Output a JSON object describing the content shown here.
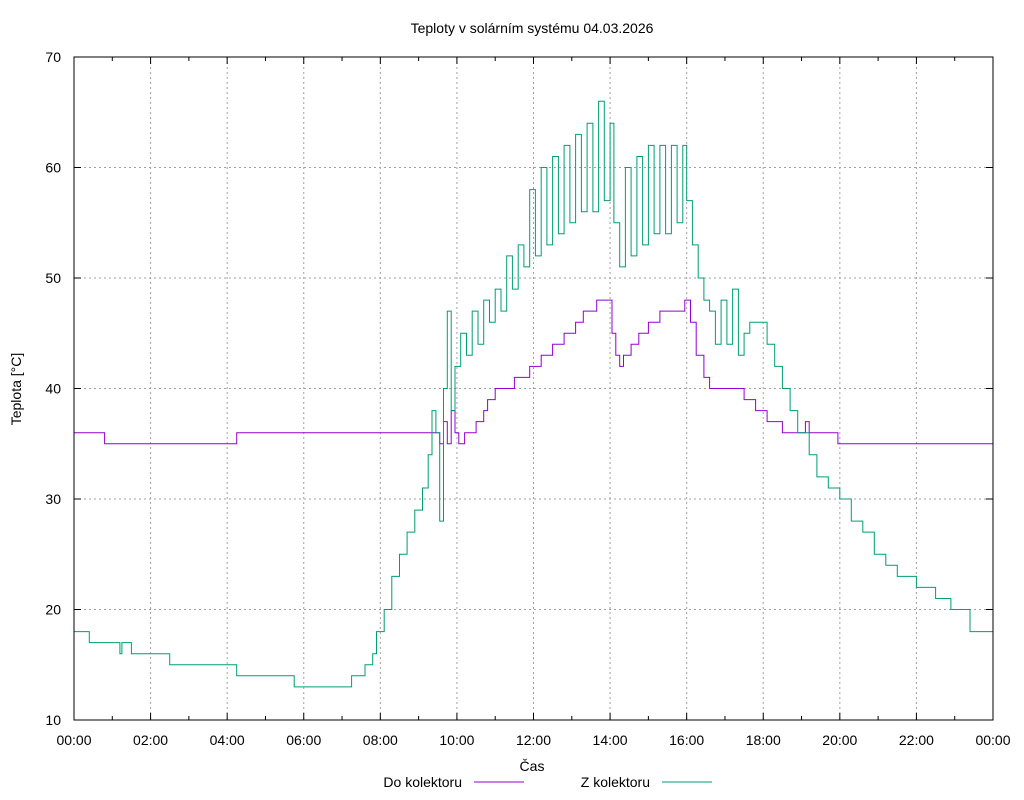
{
  "chart_data": {
    "type": "line",
    "title": "Teploty v solárním systému 04.03.2026",
    "xlabel": "Čas",
    "ylabel": "Teplota [°C]",
    "ylim": [
      10,
      70
    ],
    "xlim_hours": [
      0,
      24
    ],
    "grid": true,
    "legend_position": "bottom-center",
    "x_tick_labels": [
      "00:00",
      "02:00",
      "04:00",
      "06:00",
      "08:00",
      "10:00",
      "12:00",
      "14:00",
      "16:00",
      "18:00",
      "20:00",
      "22:00",
      "00:00"
    ],
    "y_tick_labels": [
      "10",
      "20",
      "30",
      "40",
      "50",
      "60",
      "70"
    ],
    "series": [
      {
        "name": "Do kolektoru",
        "color": "#9400d3",
        "points": [
          [
            0,
            36
          ],
          [
            0.8,
            36
          ],
          [
            0.8,
            35
          ],
          [
            4.25,
            35
          ],
          [
            4.25,
            36
          ],
          [
            9.5,
            36
          ],
          [
            9.55,
            35
          ],
          [
            9.65,
            37
          ],
          [
            9.75,
            35
          ],
          [
            9.85,
            38
          ],
          [
            9.95,
            36
          ],
          [
            10.05,
            35
          ],
          [
            10.2,
            36
          ],
          [
            10.5,
            37
          ],
          [
            10.7,
            38
          ],
          [
            10.8,
            39
          ],
          [
            11.0,
            40
          ],
          [
            11.5,
            40
          ],
          [
            11.5,
            41
          ],
          [
            11.9,
            42
          ],
          [
            12.2,
            43
          ],
          [
            12.5,
            44
          ],
          [
            12.8,
            45
          ],
          [
            13.1,
            46
          ],
          [
            13.3,
            47
          ],
          [
            13.6,
            47
          ],
          [
            13.65,
            48
          ],
          [
            13.9,
            48
          ],
          [
            14.05,
            45
          ],
          [
            14.15,
            43
          ],
          [
            14.25,
            42
          ],
          [
            14.35,
            43
          ],
          [
            14.55,
            44
          ],
          [
            14.75,
            45
          ],
          [
            15.0,
            46
          ],
          [
            15.3,
            47
          ],
          [
            15.9,
            47
          ],
          [
            15.95,
            48
          ],
          [
            16.05,
            48
          ],
          [
            16.1,
            46
          ],
          [
            16.25,
            43
          ],
          [
            16.45,
            41
          ],
          [
            16.6,
            40
          ],
          [
            17.3,
            40
          ],
          [
            17.5,
            39
          ],
          [
            17.8,
            38
          ],
          [
            18.1,
            37
          ],
          [
            18.5,
            36
          ],
          [
            19.0,
            36
          ],
          [
            19.1,
            37
          ],
          [
            19.2,
            36
          ],
          [
            19.95,
            36
          ],
          [
            19.95,
            35
          ],
          [
            24,
            35
          ]
        ]
      },
      {
        "name": "Z kolektoru",
        "color": "#009e73",
        "points": [
          [
            0,
            18
          ],
          [
            0.4,
            18
          ],
          [
            0.4,
            17
          ],
          [
            1.15,
            17
          ],
          [
            1.2,
            16
          ],
          [
            1.25,
            17
          ],
          [
            1.5,
            17
          ],
          [
            1.5,
            16
          ],
          [
            2.5,
            16
          ],
          [
            2.5,
            15
          ],
          [
            4.25,
            15
          ],
          [
            4.25,
            14
          ],
          [
            5.75,
            14
          ],
          [
            5.75,
            13
          ],
          [
            7.25,
            13
          ],
          [
            7.25,
            14
          ],
          [
            7.6,
            14
          ],
          [
            7.6,
            15
          ],
          [
            7.8,
            16
          ],
          [
            7.9,
            18
          ],
          [
            8.1,
            20
          ],
          [
            8.3,
            23
          ],
          [
            8.5,
            25
          ],
          [
            8.7,
            27
          ],
          [
            8.9,
            29
          ],
          [
            9.1,
            31
          ],
          [
            9.25,
            34
          ],
          [
            9.35,
            38
          ],
          [
            9.45,
            36
          ],
          [
            9.55,
            28
          ],
          [
            9.65,
            40
          ],
          [
            9.75,
            47
          ],
          [
            9.85,
            38
          ],
          [
            9.95,
            42
          ],
          [
            10.1,
            45
          ],
          [
            10.25,
            43
          ],
          [
            10.4,
            47
          ],
          [
            10.55,
            44
          ],
          [
            10.7,
            48
          ],
          [
            10.85,
            46
          ],
          [
            11.0,
            49
          ],
          [
            11.15,
            47
          ],
          [
            11.3,
            52
          ],
          [
            11.45,
            49
          ],
          [
            11.6,
            53
          ],
          [
            11.75,
            51
          ],
          [
            11.9,
            58
          ],
          [
            12.05,
            52
          ],
          [
            12.2,
            60
          ],
          [
            12.35,
            53
          ],
          [
            12.5,
            61
          ],
          [
            12.65,
            54
          ],
          [
            12.8,
            62
          ],
          [
            12.95,
            55
          ],
          [
            13.1,
            63
          ],
          [
            13.25,
            56
          ],
          [
            13.4,
            64
          ],
          [
            13.55,
            56
          ],
          [
            13.7,
            66
          ],
          [
            13.85,
            57
          ],
          [
            14.0,
            64
          ],
          [
            14.1,
            55
          ],
          [
            14.25,
            51
          ],
          [
            14.4,
            60
          ],
          [
            14.55,
            52
          ],
          [
            14.7,
            61
          ],
          [
            14.85,
            53
          ],
          [
            15.0,
            62
          ],
          [
            15.15,
            54
          ],
          [
            15.3,
            62
          ],
          [
            15.45,
            54
          ],
          [
            15.6,
            62
          ],
          [
            15.75,
            55
          ],
          [
            15.9,
            62
          ],
          [
            16.0,
            57
          ],
          [
            16.15,
            53
          ],
          [
            16.3,
            50
          ],
          [
            16.45,
            48
          ],
          [
            16.6,
            47
          ],
          [
            16.75,
            44
          ],
          [
            16.9,
            48
          ],
          [
            17.05,
            44
          ],
          [
            17.2,
            49
          ],
          [
            17.35,
            43
          ],
          [
            17.5,
            45
          ],
          [
            17.65,
            46
          ],
          [
            17.9,
            46
          ],
          [
            18.1,
            44
          ],
          [
            18.3,
            42
          ],
          [
            18.5,
            40
          ],
          [
            18.7,
            38
          ],
          [
            18.9,
            36
          ],
          [
            19.2,
            34
          ],
          [
            19.4,
            32
          ],
          [
            19.7,
            31
          ],
          [
            20.0,
            30
          ],
          [
            20.3,
            28
          ],
          [
            20.6,
            27
          ],
          [
            20.9,
            25
          ],
          [
            21.2,
            24
          ],
          [
            21.5,
            23
          ],
          [
            22.0,
            22
          ],
          [
            22.5,
            21
          ],
          [
            22.9,
            20
          ],
          [
            23.4,
            18
          ],
          [
            24,
            17
          ]
        ]
      }
    ]
  }
}
